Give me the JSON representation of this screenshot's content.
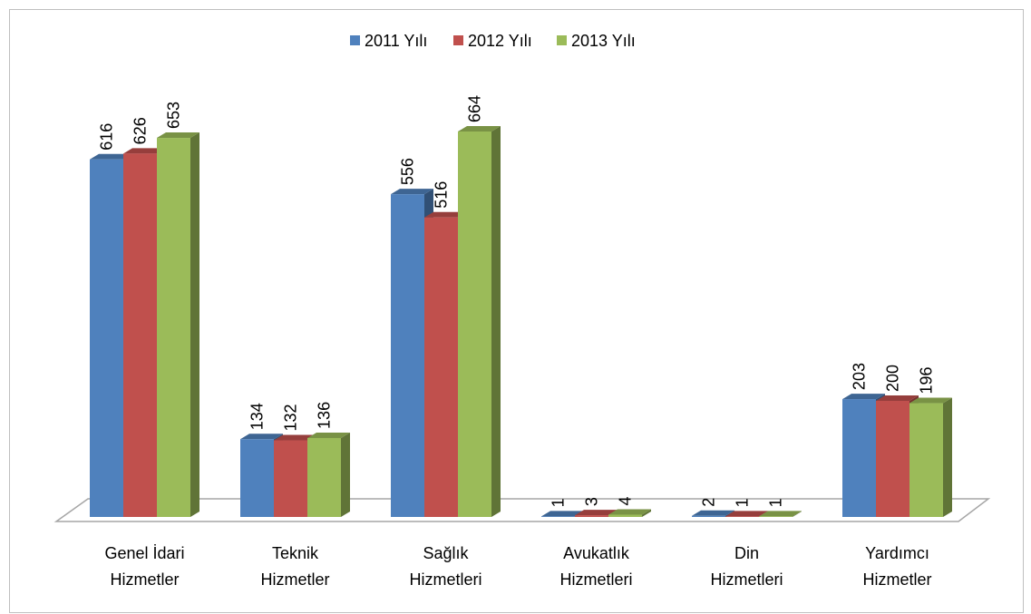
{
  "chart_data": {
    "type": "bar3d",
    "categories": [
      [
        "Genel İdari",
        "Hizmetler"
      ],
      [
        "Teknik",
        "Hizmetler"
      ],
      [
        "Sağlık",
        "Hizmetleri"
      ],
      [
        "Avukatlık",
        "Hizmetleri"
      ],
      [
        "Din",
        "Hizmetleri"
      ],
      [
        "Yardımcı",
        "Hizmetler"
      ]
    ],
    "series": [
      {
        "name": "2011 Yılı",
        "color": "#4f81bd",
        "values": [
          616,
          134,
          556,
          1,
          2,
          203
        ]
      },
      {
        "name": "2012 Yılı",
        "color": "#c0504d",
        "values": [
          626,
          132,
          516,
          3,
          1,
          200
        ]
      },
      {
        "name": "2013 Yılı",
        "color": "#9bbb59",
        "values": [
          653,
          136,
          664,
          4,
          1,
          196
        ]
      }
    ],
    "legend": "top"
  }
}
